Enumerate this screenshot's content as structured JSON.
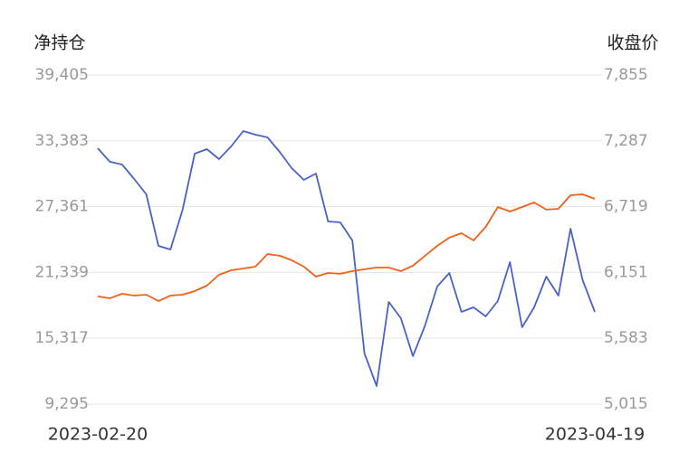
{
  "chart_data": {
    "type": "line",
    "y_label": "净持仓",
    "y2_label": "收盘价",
    "categories": [
      "2023-02-20",
      null,
      null,
      null,
      null,
      null,
      null,
      null,
      null,
      null,
      null,
      null,
      null,
      null,
      null,
      null,
      null,
      null,
      null,
      null,
      null,
      null,
      null,
      null,
      null,
      null,
      null,
      null,
      null,
      null,
      null,
      null,
      null,
      null,
      null,
      null,
      null,
      null,
      null,
      null,
      null,
      "2023-04-19"
    ],
    "series": [
      {
        "color": "#4a62c6",
        "values": [
          32705,
          31464,
          31216,
          29892,
          28486,
          23771,
          23440,
          27080,
          32208,
          32622,
          31712,
          32870,
          34276,
          33945,
          33697,
          32374,
          30885,
          29809,
          30389,
          26004,
          25922,
          24267,
          13927,
          10949,
          18642,
          17153,
          13679,
          16492,
          20049,
          21289,
          17732,
          18146,
          17319,
          18725,
          22282,
          16326,
          18146,
          20958,
          19221,
          25343,
          20628,
          17732
        ]
      },
      {
        "color": "#f0621c",
        "axis": "y2",
        "values": [
          5944,
          5928,
          5967,
          5951,
          5959,
          5904,
          5951,
          5959,
          5990,
          6037,
          6131,
          6170,
          6185,
          6201,
          6310,
          6295,
          6256,
          6201,
          6115,
          6146,
          6139,
          6162,
          6178,
          6193,
          6193,
          6162,
          6209,
          6295,
          6380,
          6451,
          6490,
          6427,
          6544,
          6716,
          6677,
          6716,
          6755,
          6693,
          6700,
          6817,
          6825,
          6786
        ]
      }
    ],
    "ylim": [
      9295,
      39405
    ],
    "yticks": [
      {
        "value": 9295,
        "label": "9,295"
      },
      {
        "value": 15317,
        "label": "15,317"
      },
      {
        "value": 21339,
        "label": "21,339"
      },
      {
        "value": 27361,
        "label": "27,361"
      },
      {
        "value": 33383,
        "label": "33,383"
      },
      {
        "value": 39405,
        "label": "39,405"
      }
    ],
    "y2lim": [
      5015,
      7855
    ],
    "y2ticks": [
      {
        "value": 5015,
        "label": "5,015"
      },
      {
        "value": 5583,
        "label": "5,583"
      },
      {
        "value": 6151,
        "label": "6,151"
      },
      {
        "value": 6719,
        "label": "6,719"
      },
      {
        "value": 7287,
        "label": "7,287"
      },
      {
        "value": 7855,
        "label": "7,855"
      }
    ],
    "grid": true
  }
}
